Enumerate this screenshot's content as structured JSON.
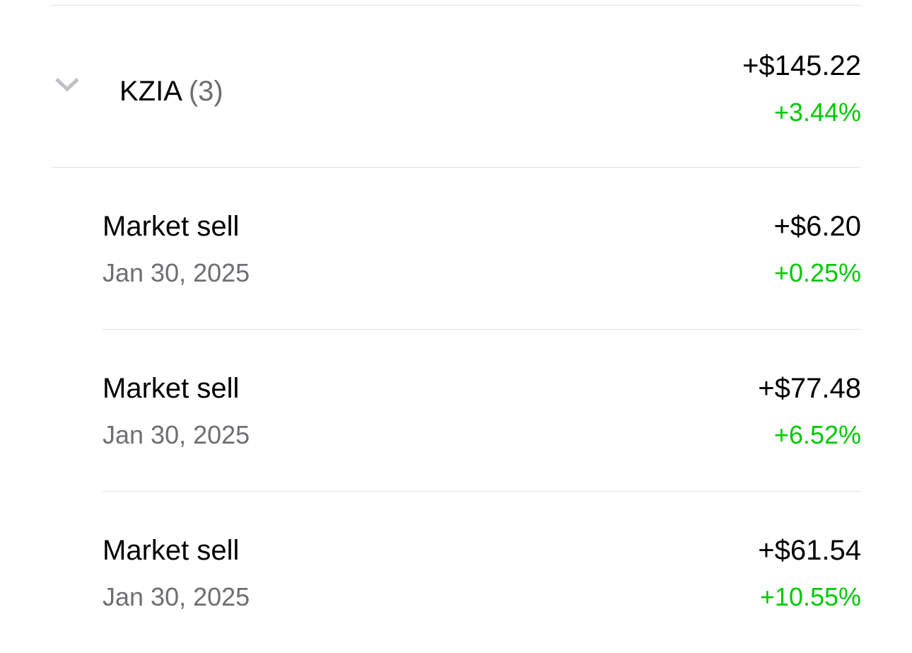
{
  "colors": {
    "positive": "#00c805",
    "secondary": "#6e6e73"
  },
  "group": {
    "symbol": "KZIA",
    "count": "(3)",
    "amount": "+$145.22",
    "percent": "+3.44%",
    "icon": "chevron-down-icon"
  },
  "orders": [
    {
      "title": "Market sell",
      "date": "Jan 30, 2025",
      "amount": "+$6.20",
      "percent": "+0.25%"
    },
    {
      "title": "Market sell",
      "date": "Jan 30, 2025",
      "amount": "+$77.48",
      "percent": "+6.52%"
    },
    {
      "title": "Market sell",
      "date": "Jan 30, 2025",
      "amount": "+$61.54",
      "percent": "+10.55%"
    }
  ]
}
